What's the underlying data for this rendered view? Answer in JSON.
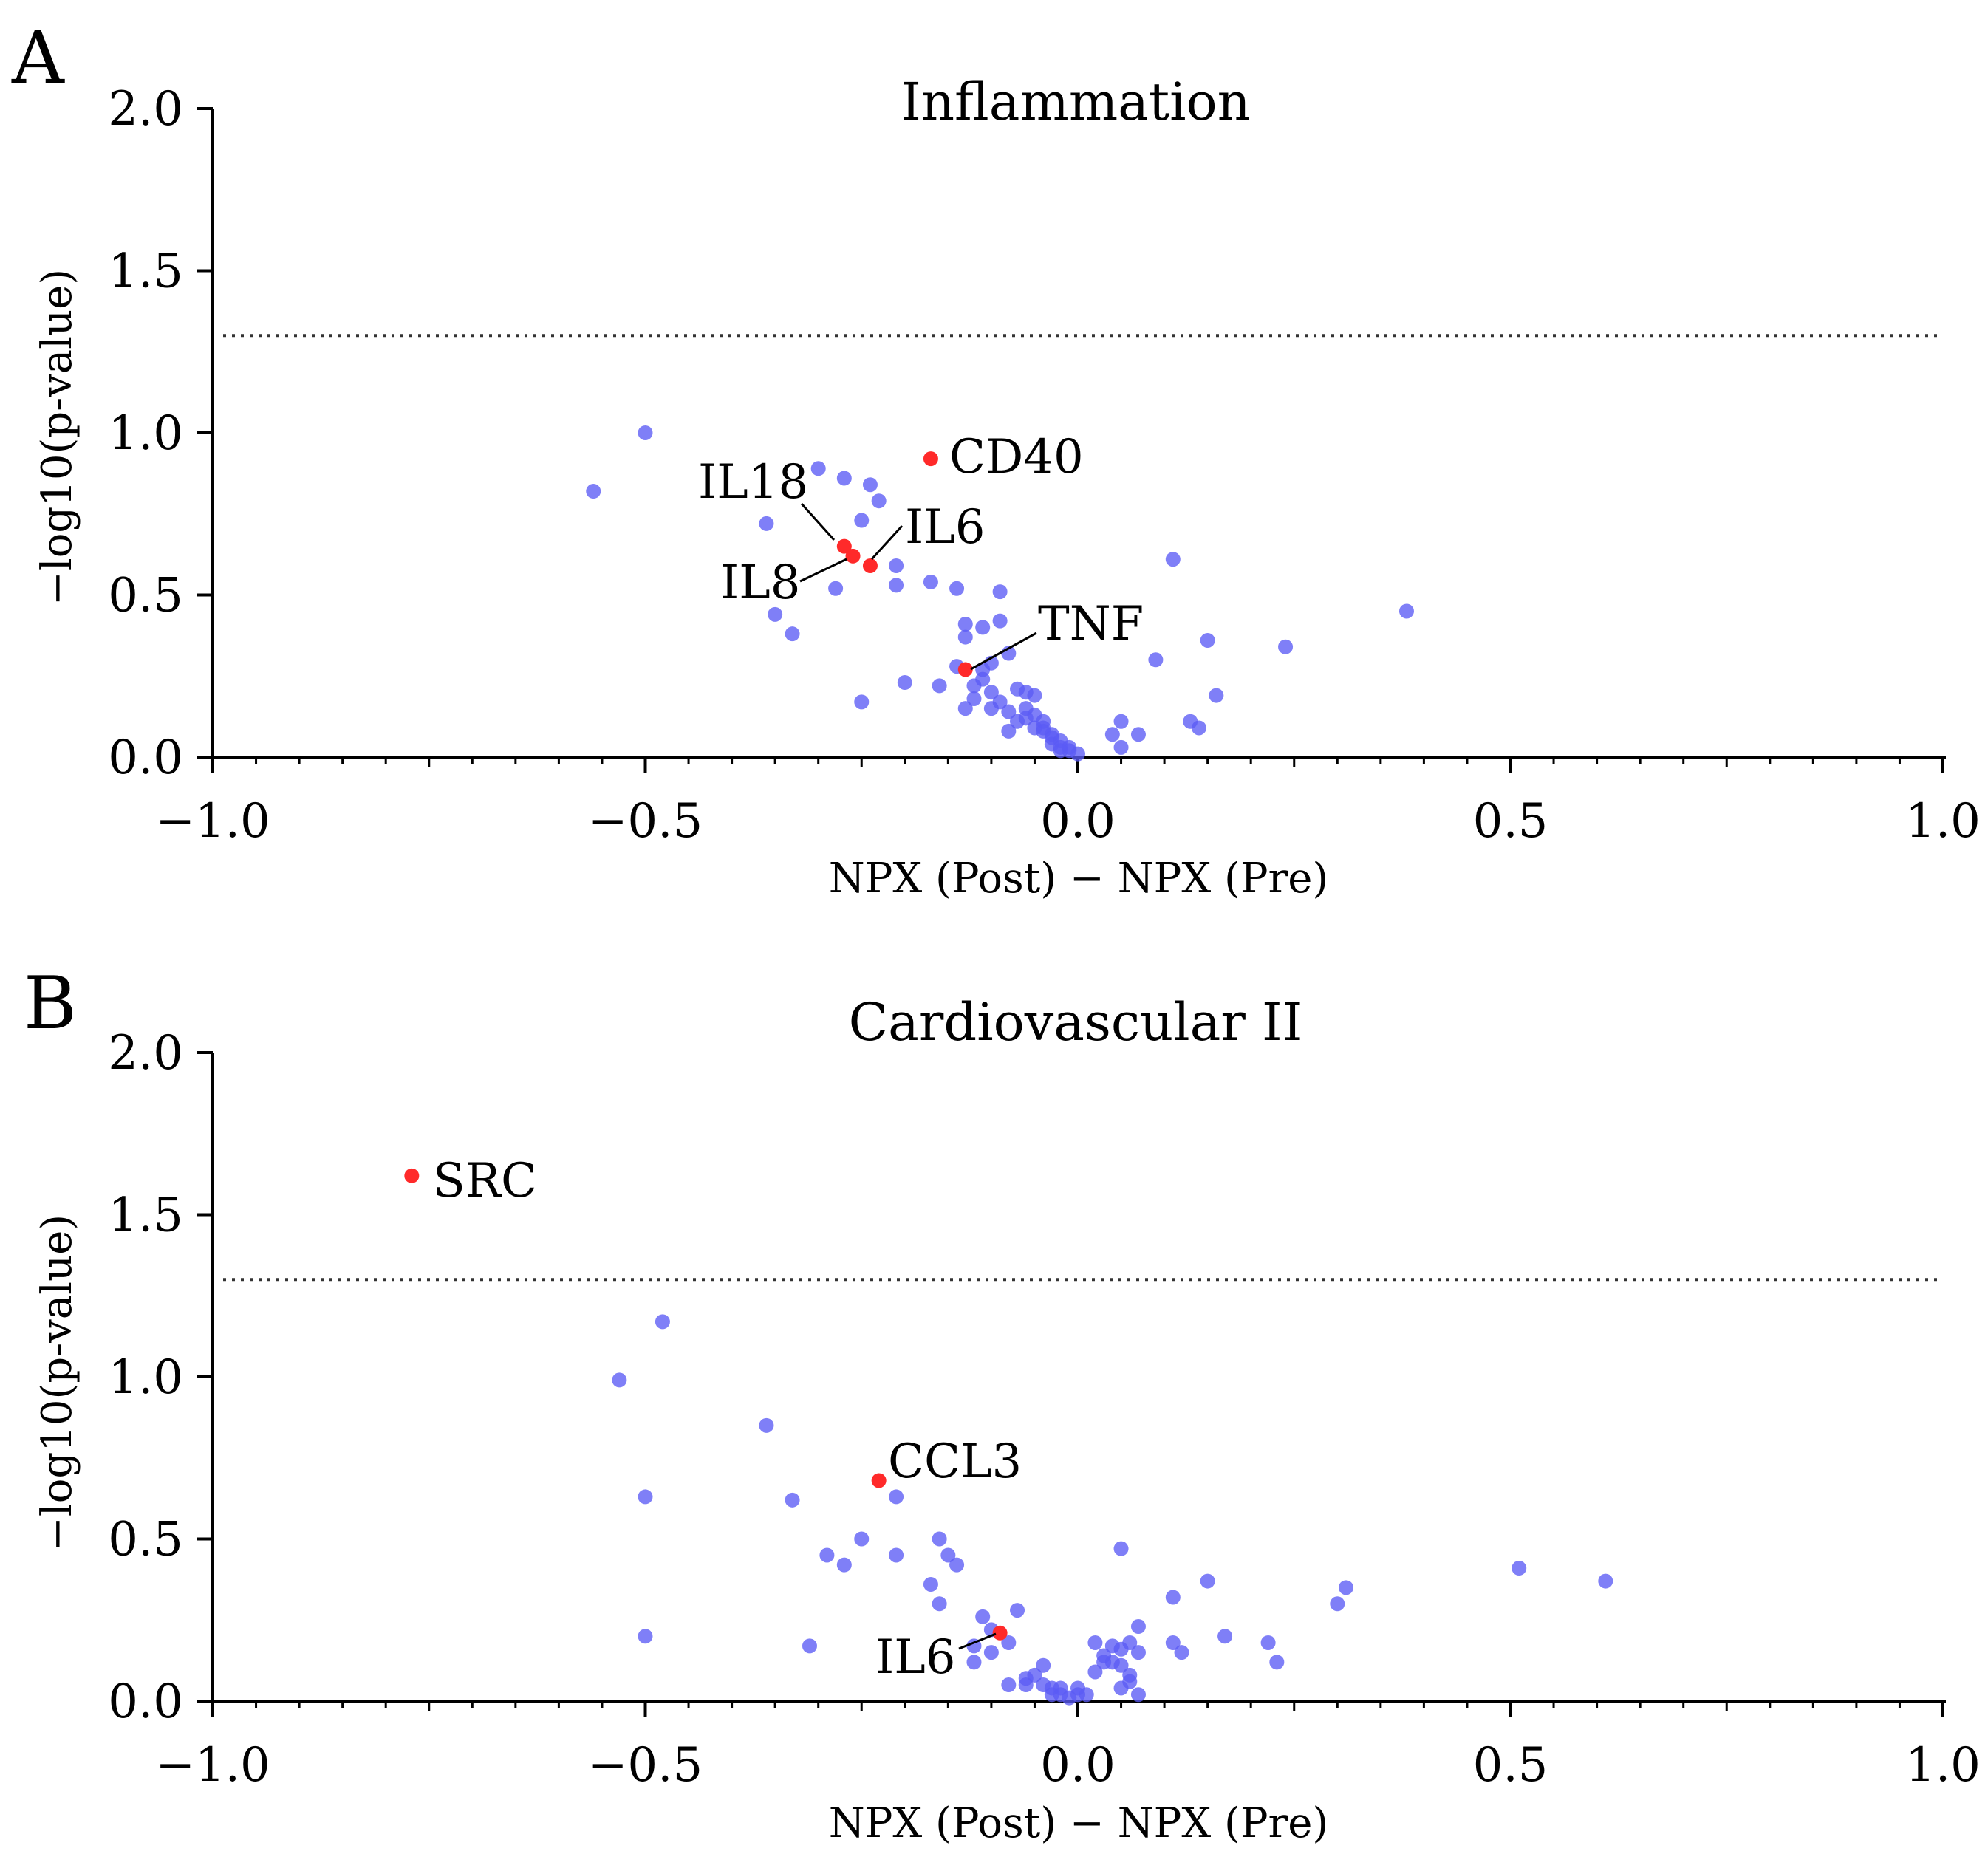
{
  "colors": {
    "base": "#5b5bf5",
    "highlight": "#ff2a2a",
    "axis": "#000000",
    "threshold": "#333333"
  },
  "chart_data": [
    {
      "panel_letter": "A",
      "type": "scatter",
      "title": "Inflammation",
      "xlabel": "NPX (Post) − NPX (Pre)",
      "ylabel": "−log10(p-value)",
      "xlim": [
        -1.0,
        1.0
      ],
      "ylim": [
        0.0,
        2.0
      ],
      "xticks": [
        "−1.0",
        "−0.5",
        "0.0",
        "0.5",
        "1.0"
      ],
      "xtick_values": [
        -1.0,
        -0.5,
        0.0,
        0.5,
        1.0
      ],
      "yticks": [
        "0.0",
        "0.5",
        "1.0",
        "1.5",
        "2.0"
      ],
      "ytick_values": [
        0.0,
        0.5,
        1.0,
        1.5,
        2.0
      ],
      "threshold": 1.3,
      "grid": false,
      "series": [
        {
          "x": [
            -0.5,
            -0.56,
            -0.3,
            -0.27,
            -0.24,
            -0.23,
            -0.36,
            -0.25,
            -0.21,
            -0.21,
            -0.28,
            -0.17,
            -0.14,
            -0.35,
            -0.33,
            -0.09,
            -0.13,
            -0.11,
            -0.09,
            -0.13,
            -0.08,
            -0.1,
            -0.25,
            -0.2,
            -0.16,
            -0.14,
            -0.11,
            -0.12,
            -0.1,
            -0.07,
            -0.06,
            -0.05,
            -0.09,
            -0.08,
            -0.06,
            -0.05,
            -0.04,
            -0.07,
            -0.04,
            -0.03,
            -0.02,
            -0.01,
            -0.12,
            -0.1,
            -0.06,
            -0.04,
            -0.03,
            -0.02,
            -0.01,
            0.0,
            -0.03,
            -0.02,
            -0.05,
            -0.08,
            -0.13,
            -0.11,
            0.11,
            0.38,
            0.15,
            0.24,
            0.09,
            0.16,
            0.13,
            0.14,
            0.05,
            0.04,
            0.07,
            0.05
          ],
          "y": [
            1.0,
            0.82,
            0.89,
            0.86,
            0.84,
            0.79,
            0.72,
            0.73,
            0.59,
            0.53,
            0.52,
            0.54,
            0.52,
            0.44,
            0.38,
            0.51,
            0.41,
            0.4,
            0.42,
            0.37,
            0.32,
            0.29,
            0.17,
            0.23,
            0.22,
            0.28,
            0.27,
            0.22,
            0.2,
            0.21,
            0.2,
            0.19,
            0.17,
            0.14,
            0.15,
            0.13,
            0.11,
            0.11,
            0.08,
            0.06,
            0.03,
            0.02,
            0.18,
            0.15,
            0.12,
            0.09,
            0.07,
            0.05,
            0.03,
            0.01,
            0.04,
            0.02,
            0.09,
            0.08,
            0.15,
            0.24,
            0.61,
            0.45,
            0.36,
            0.34,
            0.3,
            0.19,
            0.11,
            0.09,
            0.11,
            0.07,
            0.07,
            0.03
          ]
        },
        {
          "x": [
            -0.17,
            -0.27,
            -0.26,
            -0.24,
            -0.13
          ],
          "y": [
            0.92,
            0.65,
            0.62,
            0.59,
            0.27
          ],
          "labels": [
            "CD40",
            "IL18",
            "IL8",
            "IL6",
            "TNF"
          ]
        }
      ]
    },
    {
      "panel_letter": "B",
      "type": "scatter",
      "title": "Cardiovascular II",
      "xlabel": "NPX (Post) − NPX (Pre)",
      "ylabel": "−log10(p-value)",
      "xlim": [
        -1.0,
        1.0
      ],
      "ylim": [
        0.0,
        2.0
      ],
      "xticks": [
        "−1.0",
        "−0.5",
        "0.0",
        "0.5",
        "1.0"
      ],
      "xtick_values": [
        -1.0,
        -0.5,
        0.0,
        0.5,
        1.0
      ],
      "yticks": [
        "0.0",
        "0.5",
        "1.0",
        "1.5",
        "2.0"
      ],
      "ytick_values": [
        0.0,
        0.5,
        1.0,
        1.5,
        2.0
      ],
      "threshold": 1.3,
      "grid": false,
      "series": [
        {
          "x": [
            -0.48,
            -0.53,
            -0.36,
            -0.5,
            -0.33,
            -0.21,
            -0.25,
            -0.29,
            -0.27,
            -0.21,
            -0.16,
            -0.15,
            -0.14,
            -0.17,
            -0.16,
            -0.5,
            -0.31,
            -0.11,
            -0.12,
            -0.1,
            -0.07,
            -0.08,
            -0.1,
            -0.12,
            -0.06,
            -0.04,
            -0.06,
            -0.03,
            -0.02,
            -0.01,
            0.0,
            -0.02,
            -0.03,
            -0.04,
            -0.08,
            0.02,
            0.03,
            0.04,
            0.05,
            0.06,
            0.07,
            0.05,
            0.06,
            0.07,
            0.04,
            0.03,
            0.02,
            0.06,
            0.05,
            0.07,
            0.11,
            0.15,
            0.12,
            0.17,
            0.22,
            0.23,
            0.3,
            0.31,
            0.51,
            0.61,
            0.05,
            0.11,
            -0.05,
            0.01,
            0.0
          ],
          "y": [
            1.17,
            0.99,
            0.85,
            0.63,
            0.62,
            0.63,
            0.5,
            0.45,
            0.42,
            0.45,
            0.5,
            0.45,
            0.42,
            0.36,
            0.3,
            0.2,
            0.17,
            0.26,
            0.12,
            0.15,
            0.28,
            0.18,
            0.22,
            0.17,
            0.07,
            0.11,
            0.05,
            0.04,
            0.02,
            0.01,
            0.02,
            0.04,
            0.02,
            0.05,
            0.05,
            0.18,
            0.14,
            0.12,
            0.16,
            0.18,
            0.15,
            0.11,
            0.08,
            0.23,
            0.17,
            0.12,
            0.09,
            0.06,
            0.04,
            0.02,
            0.32,
            0.37,
            0.15,
            0.2,
            0.18,
            0.12,
            0.3,
            0.35,
            0.41,
            0.37,
            0.47,
            0.18,
            0.08,
            0.02,
            0.04
          ]
        },
        {
          "x": [
            -0.77,
            -0.23,
            -0.09
          ],
          "y": [
            1.62,
            0.68,
            0.21
          ],
          "labels": [
            "SRC",
            "CCL3",
            "IL6"
          ]
        }
      ]
    }
  ]
}
